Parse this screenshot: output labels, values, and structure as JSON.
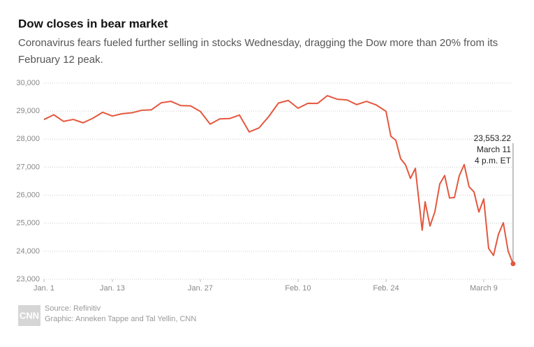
{
  "chart_data": {
    "type": "line",
    "title": "Dow closes in bear market",
    "subtitle_lines": [
      "Coronavirus fears fueled further selling in stocks Wednesday, dragging the Dow more than 20% from its",
      "February 12 peak."
    ],
    "x": [
      0,
      1,
      2,
      3,
      4,
      5,
      6,
      7,
      8,
      9,
      10,
      11,
      12,
      13,
      14,
      15,
      16,
      17,
      18,
      19,
      20,
      21,
      22,
      23,
      24,
      25,
      26,
      27,
      28,
      29,
      30,
      31,
      32,
      33,
      34,
      35,
      35.5,
      36,
      36.5,
      37,
      37.5,
      38,
      38.7,
      39,
      39.5,
      40,
      40.5,
      41,
      41.5,
      42,
      42.5,
      43,
      43.5,
      44,
      44.5,
      45,
      45.5,
      46,
      46.5,
      47,
      47.5,
      48
    ],
    "series": [
      {
        "name": "Dow",
        "color": "#e4573d",
        "values": [
          28700,
          28870,
          28634,
          28703,
          28583,
          28745,
          28957,
          28824,
          28907,
          28940,
          29030,
          29048,
          29298,
          29348,
          29196,
          29186,
          28989,
          28536,
          28723,
          28735,
          28860,
          28256,
          28400,
          28807,
          29290,
          29380,
          29103,
          29277,
          29276,
          29551,
          29424,
          29399,
          29232,
          29348,
          29219,
          28992,
          28100,
          27961,
          27300,
          27081,
          26600,
          26957,
          24750,
          25766,
          24900,
          25409,
          26400,
          26703,
          25900,
          25917,
          26700,
          27091,
          26300,
          26121,
          25400,
          25865,
          24100,
          23851,
          24600,
          25018,
          24000,
          23553.22
        ]
      }
    ],
    "xlim": [
      0,
      48
    ],
    "xticks": [
      {
        "value": 0,
        "label": "Jan. 1"
      },
      {
        "value": 7,
        "label": "Jan. 13"
      },
      {
        "value": 16,
        "label": "Jan. 27"
      },
      {
        "value": 26,
        "label": "Feb. 10"
      },
      {
        "value": 35,
        "label": "Feb. 24"
      },
      {
        "value": 45,
        "label": "March 9"
      }
    ],
    "ylim": [
      23000,
      30000
    ],
    "yticks": [
      {
        "value": 23000,
        "label": "23,000"
      },
      {
        "value": 24000,
        "label": "24,000"
      },
      {
        "value": 25000,
        "label": "25,000"
      },
      {
        "value": 26000,
        "label": "26,000"
      },
      {
        "value": 27000,
        "label": "27,000"
      },
      {
        "value": 28000,
        "label": "28,000"
      },
      {
        "value": 29000,
        "label": "29,000"
      },
      {
        "value": 30000,
        "label": "30,000"
      }
    ],
    "grid": true,
    "annotation": {
      "lines": [
        "23,553.22",
        "March 11",
        "4 p.m. ET"
      ]
    },
    "source": "Source: Refinitiv",
    "credit": "Graphic: Anneken Tappe and Tal Yellin, CNN",
    "logo": "CNN"
  }
}
